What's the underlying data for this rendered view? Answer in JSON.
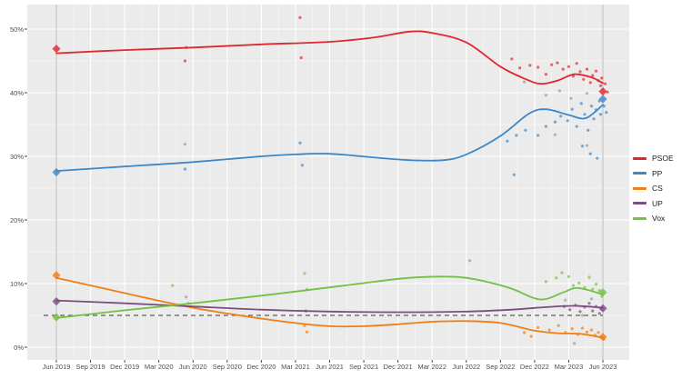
{
  "chart_data": {
    "type": "line",
    "title": "",
    "description": "Spanish voting-intention poll tracker with smoothed trend lines, poll scatter points, election-result diamonds at Jun 2019 and Jun 2023, and a dashed 5% threshold line",
    "x_axis": {
      "tick_labels": [
        "Jun 2019",
        "Sep 2019",
        "Dec 2019",
        "Mar 2020",
        "Jun 2020",
        "Sep 2020",
        "Dec 2020",
        "Mar 2021",
        "Jun 2021",
        "Sep 2021",
        "Dec 2021",
        "Mar 2022",
        "Jun 2022",
        "Sep 2022",
        "Dec 2022",
        "Mar 2023",
        "Jun 2023"
      ],
      "tick_months": [
        0,
        3,
        6,
        9,
        12,
        15,
        18,
        21,
        24,
        27,
        30,
        33,
        36,
        39,
        42,
        45,
        48
      ],
      "unit": "months since Jun 2019",
      "grid": "major white + faint minor"
    },
    "y_axis": {
      "tick_labels": [
        "0%",
        "10%",
        "20%",
        "30%",
        "40%",
        "50%"
      ],
      "tick_values": [
        0,
        10,
        20,
        30,
        40,
        50
      ],
      "range": [
        0,
        52.5
      ]
    },
    "threshold_line": {
      "value": 5,
      "style": "dashed",
      "color": "#3a3a3a"
    },
    "election_vlines_months": [
      0,
      48
    ],
    "election_vline_color": "#c9c9c9",
    "panel_bg": "#ebebeb",
    "grid_major_color": "#ffffff",
    "legend_position": "right",
    "series": [
      {
        "name": "PSOE",
        "color": "#e0262f",
        "trend": [
          [
            0,
            46.2
          ],
          [
            6,
            46.7
          ],
          [
            12,
            47.1
          ],
          [
            18,
            47.6
          ],
          [
            24,
            48.0
          ],
          [
            28,
            48.7
          ],
          [
            31,
            49.6
          ],
          [
            33,
            49.4
          ],
          [
            36,
            47.9
          ],
          [
            39,
            44.1
          ],
          [
            41,
            42.3
          ],
          [
            42.5,
            41.4
          ],
          [
            44,
            41.9
          ],
          [
            45.5,
            42.9
          ],
          [
            47,
            42.4
          ],
          [
            48,
            41.5
          ]
        ],
        "polls": [
          [
            11.3,
            45.0
          ],
          [
            11.4,
            47.1
          ],
          [
            21.4,
            51.8
          ],
          [
            21.5,
            45.5
          ],
          [
            40.0,
            45.3
          ],
          [
            40.7,
            43.9
          ],
          [
            41.6,
            44.3
          ],
          [
            42.3,
            44.0
          ],
          [
            43.0,
            42.9
          ],
          [
            43.5,
            44.4
          ],
          [
            44.0,
            44.7
          ],
          [
            44.5,
            43.7
          ],
          [
            45.0,
            44.1
          ],
          [
            45.4,
            42.6
          ],
          [
            45.7,
            44.6
          ],
          [
            46.0,
            43.3
          ],
          [
            46.3,
            42.1
          ],
          [
            46.6,
            43.7
          ],
          [
            46.9,
            41.6
          ],
          [
            47.1,
            42.7
          ],
          [
            47.4,
            43.4
          ],
          [
            47.6,
            41.9
          ],
          [
            47.8,
            41.1
          ],
          [
            47.9,
            42.3
          ],
          [
            48.2,
            41.4
          ],
          [
            48.4,
            40.1
          ]
        ]
      },
      {
        "name": "PP",
        "color": "#3d87c7",
        "trend": [
          [
            0,
            27.7
          ],
          [
            6,
            28.4
          ],
          [
            12,
            29.1
          ],
          [
            18,
            30.0
          ],
          [
            21,
            30.3
          ],
          [
            24,
            30.4
          ],
          [
            28,
            29.8
          ],
          [
            31,
            29.4
          ],
          [
            34,
            29.4
          ],
          [
            36,
            30.3
          ],
          [
            39,
            33.2
          ],
          [
            41.5,
            36.7
          ],
          [
            43,
            37.4
          ],
          [
            45,
            36.5
          ],
          [
            46.5,
            36.0
          ],
          [
            48,
            38.1
          ]
        ],
        "polls": [
          [
            11.3,
            28.0
          ],
          [
            21.4,
            32.1
          ],
          [
            21.6,
            28.6
          ],
          [
            39.6,
            32.4
          ],
          [
            40.2,
            27.1
          ],
          [
            40.4,
            33.3
          ],
          [
            41.2,
            34.1
          ],
          [
            42.3,
            33.3
          ],
          [
            43.0,
            34.7
          ],
          [
            43.8,
            35.4
          ],
          [
            44.3,
            36.3
          ],
          [
            44.9,
            35.6
          ],
          [
            45.3,
            37.4
          ],
          [
            45.7,
            34.7
          ],
          [
            46.1,
            38.3
          ],
          [
            46.2,
            31.6
          ],
          [
            46.4,
            36.6
          ],
          [
            46.7,
            34.1
          ],
          [
            46.9,
            30.4
          ],
          [
            47.0,
            37.9
          ],
          [
            47.2,
            35.9
          ],
          [
            47.4,
            37.3
          ],
          [
            47.5,
            29.7
          ],
          [
            47.7,
            38.7
          ],
          [
            47.8,
            36.6
          ],
          [
            48.1,
            37.9
          ],
          [
            48.3,
            36.9
          ]
        ]
      },
      {
        "name": "CS",
        "color": "#f07e12",
        "trend": [
          [
            0,
            10.9
          ],
          [
            3,
            9.7
          ],
          [
            6,
            8.5
          ],
          [
            9,
            7.3
          ],
          [
            12,
            6.2
          ],
          [
            15,
            5.3
          ],
          [
            18,
            4.5
          ],
          [
            21,
            3.8
          ],
          [
            24,
            3.3
          ],
          [
            27,
            3.3
          ],
          [
            30,
            3.6
          ],
          [
            33,
            4.0
          ],
          [
            36,
            4.1
          ],
          [
            39,
            3.8
          ],
          [
            42,
            2.6
          ],
          [
            44,
            2.2
          ],
          [
            46,
            2.1
          ],
          [
            48,
            1.5
          ]
        ],
        "polls": [
          [
            21.8,
            3.4
          ],
          [
            22.0,
            2.4
          ],
          [
            41.1,
            2.3
          ],
          [
            41.7,
            1.7
          ],
          [
            42.3,
            3.1
          ],
          [
            43.3,
            2.7
          ],
          [
            44.1,
            3.4
          ],
          [
            44.7,
            2.3
          ],
          [
            45.3,
            2.9
          ],
          [
            45.8,
            2.0
          ],
          [
            46.2,
            3.0
          ],
          [
            46.6,
            2.4
          ],
          [
            47.0,
            2.7
          ],
          [
            47.3,
            1.9
          ],
          [
            47.6,
            2.3
          ],
          [
            47.8,
            1.6
          ],
          [
            48.1,
            1.3
          ]
        ]
      },
      {
        "name": "UP",
        "color": "#7a4e7f",
        "trend": [
          [
            0,
            7.35
          ],
          [
            6,
            6.9
          ],
          [
            12,
            6.4
          ],
          [
            18,
            5.9
          ],
          [
            24,
            5.6
          ],
          [
            30,
            5.5
          ],
          [
            36,
            5.6
          ],
          [
            40,
            5.9
          ],
          [
            43,
            6.3
          ],
          [
            45.5,
            6.5
          ],
          [
            48,
            6.2
          ]
        ],
        "polls": [
          [
            21.9,
            5.7
          ],
          [
            44.6,
            6.4
          ],
          [
            45.1,
            5.9
          ],
          [
            45.6,
            6.6
          ],
          [
            46.0,
            5.6
          ],
          [
            46.4,
            6.3
          ],
          [
            46.8,
            6.9
          ],
          [
            47.1,
            5.7
          ],
          [
            47.4,
            6.4
          ],
          [
            47.7,
            5.3
          ],
          [
            47.9,
            6.0
          ]
        ]
      },
      {
        "name": "Vox",
        "color": "#74c043",
        "trend": [
          [
            0,
            4.6
          ],
          [
            6,
            5.8
          ],
          [
            12,
            6.9
          ],
          [
            18,
            8.1
          ],
          [
            24,
            9.4
          ],
          [
            28,
            10.3
          ],
          [
            31,
            10.9
          ],
          [
            34,
            11.1
          ],
          [
            36,
            10.9
          ],
          [
            38,
            10.2
          ],
          [
            40,
            9.2
          ],
          [
            42.5,
            7.5
          ],
          [
            44.5,
            8.6
          ],
          [
            45.8,
            9.3
          ],
          [
            48,
            8.3
          ]
        ],
        "polls": [
          [
            10.2,
            9.7
          ],
          [
            21.8,
            11.6
          ],
          [
            22.0,
            9.1
          ],
          [
            43.0,
            10.3
          ],
          [
            43.9,
            10.9
          ],
          [
            44.4,
            11.7
          ],
          [
            45.0,
            11.1
          ],
          [
            45.4,
            9.7
          ],
          [
            45.9,
            10.1
          ],
          [
            46.4,
            9.4
          ],
          [
            46.8,
            11.0
          ],
          [
            47.1,
            9.1
          ],
          [
            47.4,
            9.9
          ],
          [
            47.7,
            8.9
          ],
          [
            47.9,
            8.0
          ]
        ]
      }
    ],
    "other_points": {
      "color": "#9a9a9a",
      "points": [
        [
          11.3,
          31.9
        ],
        [
          11.4,
          7.9
        ],
        [
          11.6,
          6.9
        ],
        [
          36.3,
          13.6
        ],
        [
          41.1,
          41.7
        ],
        [
          43.0,
          39.6
        ],
        [
          43.8,
          33.4
        ],
        [
          44.2,
          40.3
        ],
        [
          44.7,
          7.4
        ],
        [
          45.2,
          39.1
        ],
        [
          45.5,
          0.6
        ],
        [
          46.2,
          5.0
        ],
        [
          46.6,
          39.9
        ],
        [
          46.6,
          31.7
        ],
        [
          47.0,
          7.6
        ]
      ]
    },
    "elections": [
      {
        "month": 0,
        "label": "Jun 2019",
        "values": {
          "PSOE": 46.9,
          "PP": 27.5,
          "CS": 11.3,
          "UP": 7.2,
          "Vox": 4.7
        }
      },
      {
        "month": 48,
        "label": "Jun 2023",
        "values": {
          "PSOE": 40.2,
          "PP": 39.0,
          "CS": 1.6,
          "UP": 6.1,
          "Vox": 8.6
        }
      }
    ],
    "legend_items": [
      "PSOE",
      "PP",
      "CS",
      "UP",
      "Vox"
    ]
  }
}
